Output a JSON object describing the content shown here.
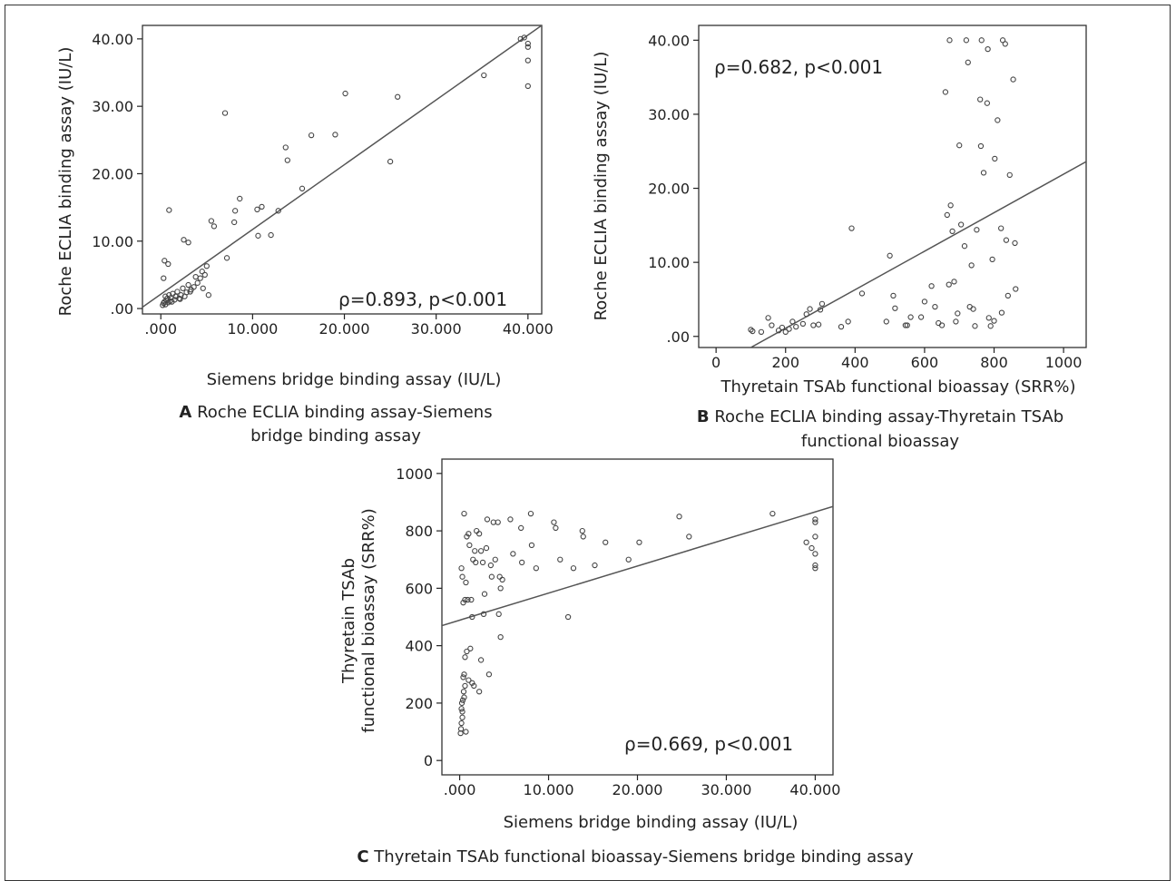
{
  "chart_data": [
    {
      "panel": "A",
      "type": "scatter",
      "caption_letter": "A",
      "caption_lines": [
        "Roche ECLIA binding assay-Siemens",
        "bridge binding assay"
      ],
      "xlabel": "Siemens bridge binding assay (IU/L)",
      "ylabel": "Roche ECLIA binding assay (IU/L)",
      "annotation": "ρ=0.893, p<0.001",
      "xlim": [
        -2,
        41.5
      ],
      "ylim": [
        -0.8,
        42
      ],
      "xticks": [
        0,
        10,
        20,
        30,
        40
      ],
      "xtick_labels": [
        ".000",
        "10.000",
        "20.000",
        "30.000",
        "40.000"
      ],
      "yticks": [
        0,
        10,
        20,
        30,
        40
      ],
      "ytick_labels": [
        ".00",
        "10.00",
        "20.00",
        "30.00",
        "40.00"
      ],
      "fit_line": {
        "x": [
          -2,
          41.5
        ],
        "y": [
          0.2,
          42.0
        ]
      },
      "points": [
        [
          0.2,
          0.5
        ],
        [
          0.3,
          0.8
        ],
        [
          0.4,
          1.0
        ],
        [
          0.5,
          0.6
        ],
        [
          0.6,
          1.2
        ],
        [
          0.7,
          1.5
        ],
        [
          0.8,
          0.9
        ],
        [
          0.9,
          2.0
        ],
        [
          1.0,
          1.1
        ],
        [
          1.1,
          1.6
        ],
        [
          1.3,
          2.2
        ],
        [
          1.5,
          1.3
        ],
        [
          1.6,
          1.8
        ],
        [
          1.8,
          2.5
        ],
        [
          2.0,
          1.5
        ],
        [
          2.2,
          2.0
        ],
        [
          2.4,
          3.0
        ],
        [
          2.6,
          1.8
        ],
        [
          2.8,
          2.4
        ],
        [
          3.0,
          3.5
        ],
        [
          3.3,
          2.8
        ],
        [
          3.6,
          3.2
        ],
        [
          4.0,
          3.8
        ],
        [
          4.3,
          4.5
        ],
        [
          4.6,
          3.0
        ],
        [
          4.8,
          5.0
        ],
        [
          5.0,
          6.3
        ],
        [
          5.2,
          2.0
        ],
        [
          3.8,
          4.7
        ],
        [
          4.5,
          5.5
        ],
        [
          0.3,
          4.5
        ],
        [
          0.4,
          7.1
        ],
        [
          0.8,
          6.6
        ],
        [
          0.9,
          14.6
        ],
        [
          2.5,
          10.2
        ],
        [
          3.0,
          9.8
        ],
        [
          5.5,
          13.0
        ],
        [
          5.8,
          12.2
        ],
        [
          7.0,
          29.0
        ],
        [
          7.2,
          7.5
        ],
        [
          8.0,
          12.8
        ],
        [
          8.1,
          14.5
        ],
        [
          8.6,
          16.3
        ],
        [
          10.5,
          14.7
        ],
        [
          10.6,
          10.8
        ],
        [
          11.0,
          15.1
        ],
        [
          12.0,
          10.9
        ],
        [
          12.8,
          14.5
        ],
        [
          13.6,
          23.9
        ],
        [
          13.8,
          22.0
        ],
        [
          15.4,
          17.8
        ],
        [
          16.4,
          25.7
        ],
        [
          19.0,
          25.8
        ],
        [
          20.1,
          31.9
        ],
        [
          25.0,
          21.8
        ],
        [
          25.8,
          31.4
        ],
        [
          35.2,
          34.6
        ],
        [
          39.2,
          40.0
        ],
        [
          39.6,
          40.2
        ],
        [
          40.0,
          39.3
        ],
        [
          40.0,
          38.8
        ],
        [
          40.0,
          36.8
        ],
        [
          40.0,
          33.0
        ],
        [
          0.5,
          1.8
        ],
        [
          1.2,
          1.0
        ],
        [
          2.1,
          1.4
        ],
        [
          3.2,
          2.5
        ]
      ]
    },
    {
      "panel": "B",
      "type": "scatter",
      "caption_letter": "B",
      "caption_lines": [
        "Roche ECLIA binding assay-Thyretain TSAb",
        "functional bioassay"
      ],
      "xlabel": "Thyretain TSAb functional bioassay (SRR%)",
      "ylabel": "Roche ECLIA binding assay (IU/L)",
      "annotation": "ρ=0.682, p<0.001",
      "xlim": [
        -50,
        1065
      ],
      "ylim": [
        -1.5,
        42
      ],
      "xticks": [
        0,
        200,
        400,
        600,
        800,
        1000
      ],
      "xtick_labels": [
        "0",
        "200",
        "400",
        "600",
        "800",
        "1000"
      ],
      "yticks": [
        0,
        10,
        20,
        30,
        40
      ],
      "ytick_labels": [
        ".00",
        "10.00",
        "20.00",
        "30.00",
        "40.00"
      ],
      "fit_line": {
        "x": [
          100,
          1065
        ],
        "y": [
          -1.5,
          23.6
        ]
      },
      "points": [
        [
          100,
          0.9
        ],
        [
          105,
          0.7
        ],
        [
          130,
          0.6
        ],
        [
          150,
          2.5
        ],
        [
          160,
          1.5
        ],
        [
          180,
          0.8
        ],
        [
          190,
          1.2
        ],
        [
          200,
          0.6
        ],
        [
          210,
          1.0
        ],
        [
          220,
          2.0
        ],
        [
          230,
          1.3
        ],
        [
          250,
          1.7
        ],
        [
          260,
          3.0
        ],
        [
          270,
          3.7
        ],
        [
          280,
          1.5
        ],
        [
          295,
          1.6
        ],
        [
          300,
          3.6
        ],
        [
          305,
          4.4
        ],
        [
          360,
          1.3
        ],
        [
          380,
          2.0
        ],
        [
          390,
          14.6
        ],
        [
          420,
          5.8
        ],
        [
          490,
          2.0
        ],
        [
          500,
          10.9
        ],
        [
          510,
          5.5
        ],
        [
          515,
          3.8
        ],
        [
          545,
          1.5
        ],
        [
          550,
          1.5
        ],
        [
          560,
          2.6
        ],
        [
          590,
          2.6
        ],
        [
          600,
          4.7
        ],
        [
          620,
          6.8
        ],
        [
          630,
          4.0
        ],
        [
          640,
          1.8
        ],
        [
          650,
          1.5
        ],
        [
          660,
          33.0
        ],
        [
          665,
          16.4
        ],
        [
          670,
          7.0
        ],
        [
          672,
          40.0
        ],
        [
          675,
          17.7
        ],
        [
          680,
          14.2
        ],
        [
          685,
          7.4
        ],
        [
          690,
          2.0
        ],
        [
          695,
          3.1
        ],
        [
          700,
          25.8
        ],
        [
          705,
          15.1
        ],
        [
          715,
          12.2
        ],
        [
          720,
          40.0
        ],
        [
          725,
          37.0
        ],
        [
          730,
          4.0
        ],
        [
          735,
          9.6
        ],
        [
          740,
          3.7
        ],
        [
          745,
          1.4
        ],
        [
          750,
          14.4
        ],
        [
          760,
          32.0
        ],
        [
          762,
          25.7
        ],
        [
          764,
          40.0
        ],
        [
          770,
          22.1
        ],
        [
          780,
          31.5
        ],
        [
          782,
          38.8
        ],
        [
          785,
          2.5
        ],
        [
          790,
          1.4
        ],
        [
          795,
          10.4
        ],
        [
          800,
          2.1
        ],
        [
          802,
          24.0
        ],
        [
          810,
          29.2
        ],
        [
          820,
          14.6
        ],
        [
          822,
          3.2
        ],
        [
          825,
          40.0
        ],
        [
          832,
          39.5
        ],
        [
          835,
          13.0
        ],
        [
          840,
          5.5
        ],
        [
          845,
          21.8
        ],
        [
          855,
          34.7
        ],
        [
          860,
          12.6
        ],
        [
          862,
          6.4
        ]
      ]
    },
    {
      "panel": "C",
      "type": "scatter",
      "caption_letter": "C",
      "caption_lines": [
        "Thyretain TSAb functional bioassay-Siemens bridge binding assay"
      ],
      "xlabel": "Siemens bridge binding assay (IU/L)",
      "ylabel": [
        "Thyretain TSAb",
        "functional bioassay (SRR%)"
      ],
      "annotation": "ρ=0.669, p<0.001",
      "xlim": [
        -2,
        42
      ],
      "ylim": [
        -50,
        1050
      ],
      "xticks": [
        0,
        10,
        20,
        30,
        40
      ],
      "xtick_labels": [
        ".000",
        "10.000",
        "20.000",
        "30.000",
        "40.000"
      ],
      "yticks": [
        0,
        200,
        400,
        600,
        800,
        1000
      ],
      "ytick_labels": [
        "0",
        "200",
        "400",
        "600",
        "800",
        "1000"
      ],
      "fit_line": {
        "x": [
          -2,
          42
        ],
        "y": [
          470,
          885
        ]
      },
      "points": [
        [
          0.1,
          95
        ],
        [
          0.15,
          110
        ],
        [
          0.2,
          130
        ],
        [
          0.2,
          180
        ],
        [
          0.25,
          200
        ],
        [
          0.3,
          150
        ],
        [
          0.3,
          170
        ],
        [
          0.35,
          210
        ],
        [
          0.4,
          290
        ],
        [
          0.45,
          240
        ],
        [
          0.5,
          220
        ],
        [
          0.5,
          300
        ],
        [
          0.6,
          260
        ],
        [
          0.6,
          360
        ],
        [
          0.7,
          100
        ],
        [
          0.8,
          380
        ],
        [
          1.0,
          280
        ],
        [
          1.2,
          390
        ],
        [
          1.4,
          270
        ],
        [
          1.6,
          260
        ],
        [
          2.2,
          240
        ],
        [
          2.4,
          350
        ],
        [
          3.3,
          300
        ],
        [
          4.6,
          430
        ],
        [
          0.2,
          670
        ],
        [
          0.3,
          640
        ],
        [
          0.4,
          550
        ],
        [
          0.5,
          860
        ],
        [
          0.6,
          560
        ],
        [
          0.7,
          620
        ],
        [
          0.8,
          780
        ],
        [
          0.9,
          560
        ],
        [
          1.0,
          790
        ],
        [
          1.1,
          750
        ],
        [
          1.3,
          560
        ],
        [
          1.4,
          500
        ],
        [
          1.5,
          700
        ],
        [
          1.7,
          730
        ],
        [
          1.8,
          690
        ],
        [
          1.9,
          800
        ],
        [
          2.2,
          790
        ],
        [
          2.4,
          730
        ],
        [
          2.6,
          690
        ],
        [
          2.7,
          510
        ],
        [
          2.8,
          580
        ],
        [
          3.0,
          740
        ],
        [
          3.1,
          840
        ],
        [
          3.5,
          680
        ],
        [
          3.6,
          640
        ],
        [
          3.8,
          830
        ],
        [
          4.0,
          700
        ],
        [
          4.3,
          830
        ],
        [
          4.4,
          510
        ],
        [
          4.5,
          640
        ],
        [
          4.6,
          600
        ],
        [
          4.8,
          630
        ],
        [
          5.7,
          840
        ],
        [
          6.0,
          720
        ],
        [
          6.9,
          810
        ],
        [
          7.0,
          690
        ],
        [
          8.0,
          860
        ],
        [
          8.1,
          750
        ],
        [
          8.6,
          670
        ],
        [
          10.6,
          830
        ],
        [
          10.8,
          810
        ],
        [
          11.3,
          700
        ],
        [
          12.2,
          500
        ],
        [
          12.8,
          670
        ],
        [
          13.8,
          800
        ],
        [
          13.9,
          780
        ],
        [
          15.2,
          680
        ],
        [
          16.4,
          760
        ],
        [
          19.0,
          700
        ],
        [
          20.2,
          760
        ],
        [
          24.7,
          850
        ],
        [
          25.8,
          780
        ],
        [
          35.2,
          860
        ],
        [
          39.0,
          760
        ],
        [
          39.6,
          740
        ],
        [
          40.0,
          840
        ],
        [
          40.0,
          830
        ],
        [
          40.0,
          780
        ],
        [
          40.0,
          720
        ],
        [
          40.0,
          680
        ],
        [
          40.0,
          670
        ]
      ]
    }
  ]
}
